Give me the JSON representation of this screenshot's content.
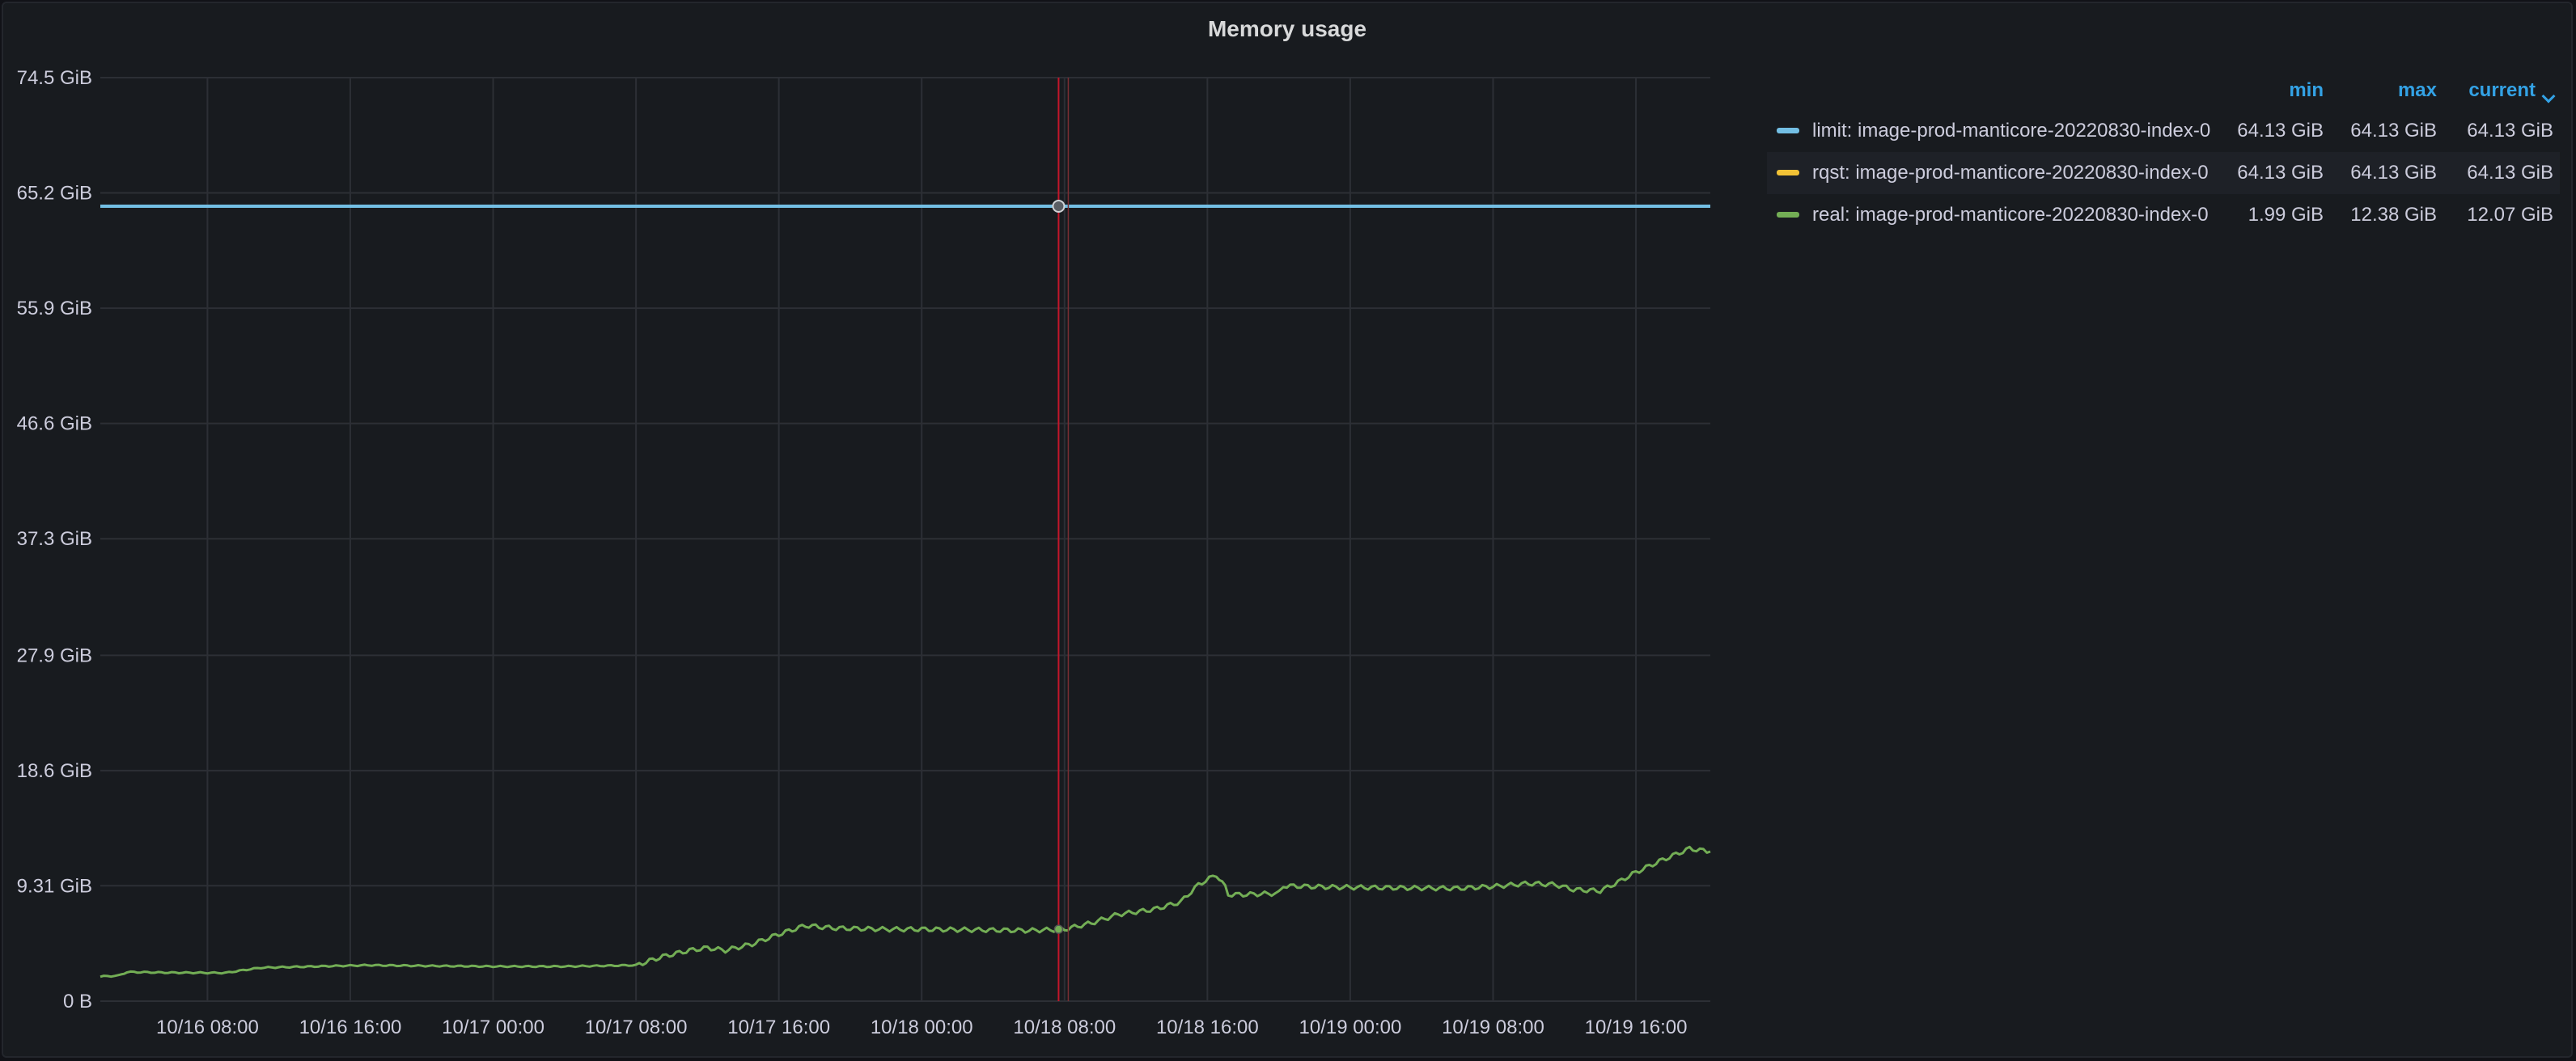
{
  "panel": {
    "title": "Memory usage"
  },
  "legend": {
    "headers": {
      "min": "min",
      "max": "max",
      "current": "current"
    },
    "rows": [
      {
        "name": "limit: image-prod-manticore-20220830-index-0",
        "min": "64.13 GiB",
        "max": "64.13 GiB",
        "current": "64.13 GiB",
        "color": "#73bfe4"
      },
      {
        "name": "rqst: image-prod-manticore-20220830-index-0",
        "min": "64.13 GiB",
        "max": "64.13 GiB",
        "current": "64.13 GiB",
        "color": "#f2c236"
      },
      {
        "name": "real: image-prod-manticore-20220830-index-0",
        "min": "1.99 GiB",
        "max": "12.38 GiB",
        "current": "12.07 GiB",
        "color": "#73ae55"
      }
    ]
  },
  "chart_data": {
    "type": "line",
    "title": "Memory usage",
    "xlabel": "",
    "ylabel": "",
    "ylim": [
      0,
      74.5
    ],
    "y_unit": "GiB",
    "yticks": [
      {
        "value": 0,
        "label": "0 B"
      },
      {
        "value": 9.31,
        "label": "9.31 GiB"
      },
      {
        "value": 18.6,
        "label": "18.6 GiB"
      },
      {
        "value": 27.9,
        "label": "27.9 GiB"
      },
      {
        "value": 37.3,
        "label": "37.3 GiB"
      },
      {
        "value": 46.6,
        "label": "46.6 GiB"
      },
      {
        "value": 55.9,
        "label": "55.9 GiB"
      },
      {
        "value": 65.2,
        "label": "65.2 GiB"
      },
      {
        "value": 74.5,
        "label": "74.5 GiB"
      }
    ],
    "xlim": [
      "10/16 02:00",
      "10/19 20:10"
    ],
    "xticks": [
      "10/16 08:00",
      "10/16 16:00",
      "10/17 00:00",
      "10/17 08:00",
      "10/17 16:00",
      "10/18 00:00",
      "10/18 08:00",
      "10/18 16:00",
      "10/19 00:00",
      "10/19 08:00",
      "10/19 16:00"
    ],
    "grid": true,
    "legend_position": "right",
    "crosshair_time": "10/18 07:40",
    "series": [
      {
        "name": "limit: image-prod-manticore-20220830-index-0",
        "color": "#73bfe4",
        "points": [
          [
            "10/16 02:00",
            64.13
          ],
          [
            "10/19 20:10",
            64.13
          ]
        ]
      },
      {
        "name": "rqst: image-prod-manticore-20220830-index-0",
        "color": "#f2c236",
        "points": [
          [
            "10/16 02:00",
            64.13
          ],
          [
            "10/19 20:10",
            64.13
          ]
        ]
      },
      {
        "name": "real: image-prod-manticore-20220830-index-0",
        "color": "#73ae55",
        "points": [
          [
            "10/16 02:00",
            1.99
          ],
          [
            "10/16 03:00",
            2.05
          ],
          [
            "10/16 03:30",
            2.35
          ],
          [
            "10/16 06:00",
            2.3
          ],
          [
            "10/16 09:00",
            2.28
          ],
          [
            "10/16 10:00",
            2.5
          ],
          [
            "10/16 11:00",
            2.7
          ],
          [
            "10/16 14:00",
            2.8
          ],
          [
            "10/16 17:00",
            2.9
          ],
          [
            "10/16 20:00",
            2.85
          ],
          [
            "10/17 00:00",
            2.8
          ],
          [
            "10/17 04:00",
            2.8
          ],
          [
            "10/17 08:00",
            2.9
          ],
          [
            "10/17 09:30",
            3.6
          ],
          [
            "10/17 11:00",
            4.1
          ],
          [
            "10/17 12:00",
            4.3
          ],
          [
            "10/17 13:00",
            4.1
          ],
          [
            "10/17 14:30",
            4.6
          ],
          [
            "10/17 16:00",
            5.4
          ],
          [
            "10/17 17:30",
            6.1
          ],
          [
            "10/17 19:00",
            5.9
          ],
          [
            "10/17 22:00",
            5.8
          ],
          [
            "10/18 00:00",
            5.8
          ],
          [
            "10/18 03:00",
            5.75
          ],
          [
            "10/18 06:00",
            5.7
          ],
          [
            "10/18 08:00",
            5.8
          ],
          [
            "10/18 09:30",
            6.3
          ],
          [
            "10/18 11:00",
            7.0
          ],
          [
            "10/18 13:00",
            7.4
          ],
          [
            "10/18 14:30",
            8.0
          ],
          [
            "10/18 15:30",
            9.4
          ],
          [
            "10/18 16:30",
            10.2
          ],
          [
            "10/18 17:00",
            9.2
          ],
          [
            "10/18 17:10",
            8.6
          ],
          [
            "10/18 18:00",
            8.6
          ],
          [
            "10/18 20:00",
            8.7
          ],
          [
            "10/18 20:15",
            9.3
          ],
          [
            "10/18 23:00",
            9.2
          ],
          [
            "10/19 02:00",
            9.15
          ],
          [
            "10/19 06:00",
            9.1
          ],
          [
            "10/19 08:00",
            9.25
          ],
          [
            "10/19 10:00",
            9.5
          ],
          [
            "10/19 11:30",
            9.4
          ],
          [
            "10/19 12:30",
            9.0
          ],
          [
            "10/19 14:00",
            8.9
          ],
          [
            "10/19 15:00",
            9.6
          ],
          [
            "10/19 16:00",
            10.4
          ],
          [
            "10/19 17:30",
            11.4
          ],
          [
            "10/19 19:00",
            12.3
          ],
          [
            "10/19 20:10",
            12.07
          ]
        ]
      }
    ]
  }
}
